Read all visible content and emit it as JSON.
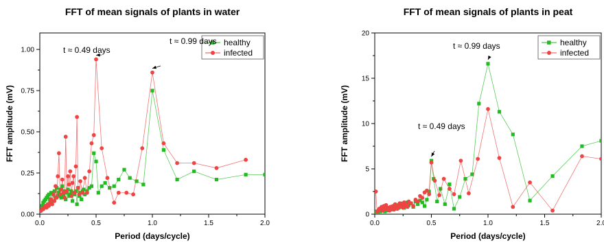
{
  "chart_data": [
    {
      "type": "line",
      "title": "FFT of mean signals of plants in water",
      "xlabel": "Period (days/cycle)",
      "ylabel": "FFT amplitude (mV)",
      "xlim": [
        0,
        2.0
      ],
      "ylim": [
        0,
        1.1
      ],
      "xticks": [
        "0.0",
        "0.5",
        "1.0",
        "1.5",
        "2.0"
      ],
      "yticks": [
        "0.00",
        "0.25",
        "0.50",
        "0.75",
        "1.00"
      ],
      "legend_position": "top-right",
      "annotations": [
        {
          "text": "t ≈ 0.49 days",
          "x": 0.5,
          "y": 0.94
        },
        {
          "text": "t ≈ 0.99 days",
          "x": 1.0,
          "y": 0.86
        }
      ],
      "series": [
        {
          "name": "healthy",
          "color": "#22bb22",
          "marker": "square",
          "x": [
            0.02,
            0.03,
            0.04,
            0.05,
            0.06,
            0.07,
            0.08,
            0.09,
            0.1,
            0.11,
            0.12,
            0.13,
            0.14,
            0.15,
            0.16,
            0.17,
            0.18,
            0.19,
            0.2,
            0.21,
            0.22,
            0.23,
            0.24,
            0.25,
            0.26,
            0.27,
            0.28,
            0.29,
            0.3,
            0.31,
            0.32,
            0.33,
            0.34,
            0.35,
            0.36,
            0.37,
            0.38,
            0.39,
            0.4,
            0.42,
            0.44,
            0.46,
            0.48,
            0.5,
            0.52,
            0.55,
            0.58,
            0.62,
            0.66,
            0.7,
            0.75,
            0.8,
            0.86,
            0.92,
            1.0,
            1.1,
            1.22,
            1.37,
            1.57,
            1.83,
            2.0
          ],
          "y": [
            0.05,
            0.07,
            0.08,
            0.09,
            0.1,
            0.11,
            0.12,
            0.09,
            0.13,
            0.08,
            0.12,
            0.14,
            0.1,
            0.16,
            0.11,
            0.13,
            0.15,
            0.1,
            0.17,
            0.12,
            0.14,
            0.09,
            0.13,
            0.15,
            0.11,
            0.12,
            0.14,
            0.08,
            0.13,
            0.12,
            0.14,
            0.06,
            0.16,
            0.11,
            0.13,
            0.09,
            0.14,
            0.15,
            0.12,
            0.14,
            0.16,
            0.17,
            0.37,
            0.32,
            0.13,
            0.17,
            0.19,
            0.16,
            0.17,
            0.21,
            0.27,
            0.22,
            0.2,
            0.18,
            0.75,
            0.39,
            0.21,
            0.26,
            0.21,
            0.24,
            0.24
          ]
        },
        {
          "name": "infected",
          "color": "#ee4444",
          "marker": "circle",
          "x": [
            0.01,
            0.02,
            0.03,
            0.04,
            0.05,
            0.06,
            0.07,
            0.08,
            0.09,
            0.1,
            0.11,
            0.12,
            0.13,
            0.14,
            0.15,
            0.16,
            0.17,
            0.18,
            0.19,
            0.2,
            0.21,
            0.22,
            0.23,
            0.24,
            0.25,
            0.26,
            0.27,
            0.28,
            0.29,
            0.3,
            0.31,
            0.32,
            0.33,
            0.34,
            0.35,
            0.36,
            0.38,
            0.4,
            0.42,
            0.44,
            0.46,
            0.48,
            0.5,
            0.55,
            0.6,
            0.66,
            0.7,
            0.77,
            0.83,
            0.91,
            1.0,
            1.1,
            1.22,
            1.37,
            1.57,
            1.83
          ],
          "y": [
            0.02,
            0.03,
            0.03,
            0.04,
            0.05,
            0.04,
            0.06,
            0.05,
            0.07,
            0.09,
            0.06,
            0.12,
            0.08,
            0.17,
            0.1,
            0.23,
            0.37,
            0.12,
            0.15,
            0.21,
            0.13,
            0.1,
            0.47,
            0.14,
            0.23,
            0.18,
            0.26,
            0.11,
            0.19,
            0.23,
            0.13,
            0.29,
            0.59,
            0.16,
            0.12,
            0.2,
            0.13,
            0.22,
            0.13,
            0.26,
            0.43,
            0.48,
            0.94,
            0.4,
            0.22,
            0.07,
            0.13,
            0.13,
            0.12,
            0.4,
            0.86,
            0.43,
            0.31,
            0.31,
            0.28,
            0.33
          ]
        }
      ]
    },
    {
      "type": "line",
      "title": "FFT of mean signals of plants in peat",
      "xlabel": "Period (days/cycle)",
      "ylabel": "FFT amplitude (mV)",
      "xlim": [
        0,
        2.0
      ],
      "ylim": [
        0,
        20
      ],
      "xticks": [
        "0.0",
        "0.5",
        "1.0",
        "1.5",
        "2.0"
      ],
      "yticks": [
        "0",
        "5",
        "10",
        "15",
        "20"
      ],
      "legend_position": "top-right",
      "annotations": [
        {
          "text": "t ≈ 0.99 days",
          "x": 1.0,
          "y": 16.6
        },
        {
          "text": "t ≈ 0.49 days",
          "x": 0.5,
          "y": 5.9
        }
      ],
      "series": [
        {
          "name": "healthy",
          "color": "#22bb22",
          "marker": "square",
          "x": [
            0.01,
            0.02,
            0.03,
            0.04,
            0.05,
            0.06,
            0.07,
            0.08,
            0.09,
            0.1,
            0.11,
            0.12,
            0.13,
            0.14,
            0.15,
            0.16,
            0.17,
            0.18,
            0.19,
            0.2,
            0.21,
            0.22,
            0.23,
            0.24,
            0.25,
            0.26,
            0.27,
            0.28,
            0.29,
            0.3,
            0.32,
            0.34,
            0.36,
            0.38,
            0.4,
            0.42,
            0.44,
            0.46,
            0.48,
            0.5,
            0.52,
            0.55,
            0.58,
            0.62,
            0.66,
            0.7,
            0.75,
            0.8,
            0.86,
            0.92,
            1.0,
            1.1,
            1.22,
            1.37,
            1.57,
            1.83,
            2.0
          ],
          "y": [
            0.2,
            0.3,
            0.2,
            0.4,
            0.3,
            0.5,
            0.4,
            0.6,
            0.3,
            0.5,
            0.7,
            0.4,
            0.6,
            0.8,
            0.5,
            0.7,
            0.9,
            0.6,
            0.8,
            1.0,
            0.7,
            0.9,
            1.2,
            0.8,
            1.0,
            0.7,
            1.1,
            0.9,
            1.3,
            1.0,
            1.2,
            0.8,
            1.4,
            1.1,
            1.5,
            1.3,
            0.9,
            1.6,
            2.5,
            5.9,
            3.9,
            1.4,
            2.8,
            1.1,
            3.3,
            0.6,
            1.9,
            3.9,
            4.4,
            12.2,
            16.6,
            11.3,
            8.8,
            1.5,
            4.2,
            7.5,
            8.1
          ]
        },
        {
          "name": "infected",
          "color": "#ee4444",
          "marker": "circle",
          "x": [
            0.01,
            0.02,
            0.03,
            0.04,
            0.05,
            0.06,
            0.07,
            0.08,
            0.09,
            0.1,
            0.11,
            0.12,
            0.13,
            0.14,
            0.15,
            0.16,
            0.17,
            0.18,
            0.19,
            0.2,
            0.21,
            0.22,
            0.23,
            0.24,
            0.25,
            0.26,
            0.27,
            0.28,
            0.29,
            0.3,
            0.32,
            0.34,
            0.36,
            0.38,
            0.4,
            0.42,
            0.44,
            0.46,
            0.48,
            0.5,
            0.53,
            0.57,
            0.61,
            0.66,
            0.7,
            0.76,
            0.83,
            0.91,
            1.0,
            1.1,
            1.22,
            1.37,
            1.57,
            1.83,
            2.0
          ],
          "y": [
            2.5,
            0.3,
            0.4,
            0.6,
            0.5,
            0.8,
            0.4,
            0.9,
            0.6,
            1.0,
            0.5,
            0.7,
            0.4,
            0.8,
            0.6,
            0.9,
            0.5,
            1.1,
            0.7,
            0.6,
            0.9,
            1.2,
            0.8,
            1.0,
            0.7,
            1.3,
            0.9,
            1.1,
            0.8,
            1.4,
            1.2,
            0.9,
            1.6,
            1.4,
            2.0,
            1.8,
            2.4,
            2.6,
            2.2,
            5.7,
            3.7,
            2.1,
            3.9,
            2.8,
            2.2,
            5.9,
            2.3,
            6.1,
            11.6,
            6.2,
            0.8,
            3.5,
            0.4,
            6.4,
            6.1
          ]
        }
      ]
    }
  ]
}
